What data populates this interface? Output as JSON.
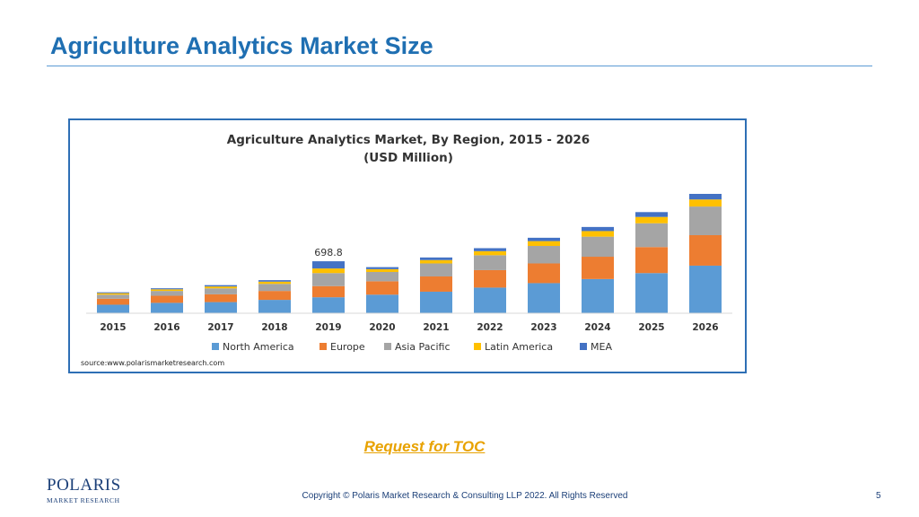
{
  "slide": {
    "title": "Agriculture Analytics Market Size",
    "toc_link": "Request for TOC",
    "copyright": "Copyright © Polaris Market Research & Consulting LLP 2022. All Rights Reserved",
    "page_number": "5"
  },
  "logo": {
    "word": "POLARIS",
    "sub": "MARKET RESEARCH"
  },
  "colors": {
    "title": "#1f6fb2",
    "link": "#e8a200",
    "north_america": "#5b9bd5",
    "europe": "#ed7d31",
    "asia_pacific": "#a5a5a5",
    "latin_america": "#ffc000",
    "mea": "#4472c4"
  },
  "chart_data": {
    "type": "bar",
    "stacked": true,
    "title": "Agriculture Analytics Market, By Region, 2015 - 2026",
    "subtitle": "(USD Million)",
    "source": "source:www.polarismarketresearch.com",
    "legend_position": "bottom",
    "categories": [
      "2015",
      "2016",
      "2017",
      "2018",
      "2019",
      "2020",
      "2021",
      "2022",
      "2023",
      "2024",
      "2025",
      "2026"
    ],
    "annotations": [
      {
        "category": "2019",
        "text": "698.8",
        "value": 698.8
      }
    ],
    "series": [
      {
        "name": "North America",
        "color": "#5b9bd5",
        "values": [
          115,
          140,
          150,
          180,
          215,
          250,
          290,
          345,
          405,
          460,
          540,
          640
        ]
      },
      {
        "name": "Europe",
        "color": "#ed7d31",
        "values": [
          80,
          95,
          105,
          120,
          150,
          180,
          205,
          235,
          265,
          300,
          350,
          410
        ]
      },
      {
        "name": "Asia Pacific",
        "color": "#a5a5a5",
        "values": [
          55,
          65,
          80,
          95,
          175,
          125,
          175,
          200,
          235,
          270,
          320,
          385
        ]
      },
      {
        "name": "Latin America",
        "color": "#ffc000",
        "values": [
          20,
          22,
          25,
          30,
          62,
          38,
          45,
          55,
          65,
          75,
          85,
          95
        ]
      },
      {
        "name": "MEA",
        "color": "#4472c4",
        "values": [
          12,
          14,
          18,
          20,
          97,
          27,
          35,
          40,
          45,
          55,
          65,
          75
        ]
      }
    ]
  }
}
